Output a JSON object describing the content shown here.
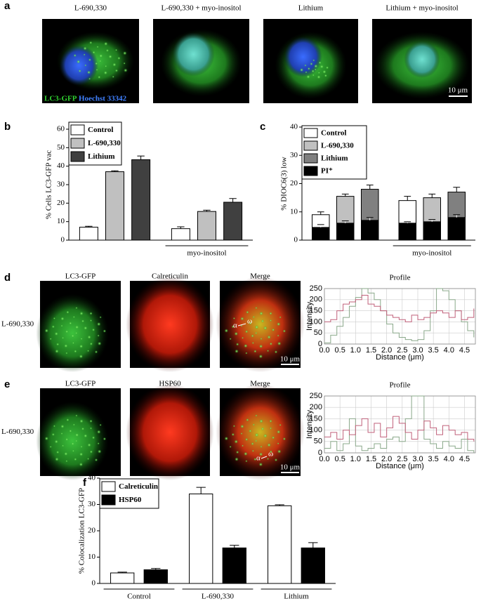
{
  "figure": {
    "panel_labels": [
      "a",
      "b",
      "c",
      "d",
      "e",
      "f"
    ],
    "a": {
      "titles": [
        "L-690,330",
        "L-690,330 + myo-inositol",
        "Lithium",
        "Lithium + myo-inositol"
      ],
      "stain_labels": [
        "LC3-GFP",
        "Hoechst 33342"
      ],
      "scale_bar": "10 μm"
    },
    "d": {
      "row_label": "L-690,330",
      "titles": [
        "LC3-GFP",
        "Calreticulin",
        "Merge"
      ],
      "scale_bar": "10 μm",
      "markers": [
        "α",
        "ω"
      ]
    },
    "e": {
      "row_label": "L-690,330",
      "titles": [
        "LC3-GFP",
        "HSP60",
        "Merge"
      ],
      "scale_bar": "10 μm",
      "markers": [
        "α",
        "ω"
      ]
    }
  },
  "chart_data": [
    {
      "type": "bar",
      "ylabel": "% Cells LC3-GFP vac",
      "categories": [
        null,
        "myo-inositol"
      ],
      "ylim": [
        0,
        60
      ],
      "yticks": [
        0,
        10,
        20,
        30,
        40,
        50,
        60
      ],
      "legend": "upper left",
      "series": [
        {
          "name": "Control",
          "color": "#ffffff",
          "values": [
            7,
            6.2
          ],
          "errors": [
            0.5,
            1
          ]
        },
        {
          "name": "L-690,330",
          "color": "#c0c0c0",
          "values": [
            37,
            15.5
          ],
          "errors": [
            0.5,
            0.7
          ]
        },
        {
          "name": "Lithium",
          "color": "#404040",
          "values": [
            43.5,
            20.5
          ],
          "errors": [
            2,
            2
          ]
        }
      ]
    },
    {
      "type": "bar",
      "ylabel": "% DIOC6(3) low",
      "categories": [
        null,
        "myo-inositol"
      ],
      "ylim": [
        0,
        40
      ],
      "yticks": [
        0,
        10,
        20,
        30,
        40
      ],
      "legend": "upper left",
      "stack_name": "PI⁺",
      "stack_color": "#000000",
      "series": [
        {
          "name": "Control",
          "color": "#ffffff",
          "values": [
            4.5,
            8
          ],
          "errors": [
            1,
            1.5
          ],
          "pi_values": [
            4.5,
            6
          ],
          "pi_errors": [
            1,
            0.5
          ]
        },
        {
          "name": "L-690,330",
          "color": "#c0c0c0",
          "values": [
            9.5,
            8.5
          ],
          "errors": [
            0.8,
            1.3
          ],
          "pi_values": [
            6,
            6.5
          ],
          "pi_errors": [
            0.8,
            0.8
          ]
        },
        {
          "name": "Lithium",
          "color": "#808080",
          "values": [
            11,
            9
          ],
          "errors": [
            1.5,
            1.7
          ],
          "pi_values": [
            7,
            8
          ],
          "pi_errors": [
            1,
            1
          ]
        }
      ]
    },
    {
      "type": "bar",
      "ylabel": "% Colocalization LC3-GFP",
      "categories": [
        "Control",
        "L-690,330",
        "Lithium"
      ],
      "ylim": [
        0,
        40
      ],
      "yticks": [
        0,
        10,
        20,
        30,
        40
      ],
      "legend": "upper left",
      "series": [
        {
          "name": "Calreticulin",
          "color": "#ffffff",
          "values": [
            4,
            34,
            29.5
          ],
          "errors": [
            0.3,
            2.5,
            0.4
          ]
        },
        {
          "name": "HSP60",
          "color": "#000000",
          "values": [
            5.2,
            13.5,
            13.5
          ],
          "errors": [
            0.5,
            1,
            2
          ]
        }
      ]
    },
    {
      "type": "line",
      "title": "Profile",
      "xlabel": "Distance (μm)",
      "ylabel": "Intensity",
      "grid": true,
      "xlim": [
        0,
        4.85
      ],
      "ylim": [
        0,
        250
      ],
      "xticks": [
        {
          "value": 0,
          "label": "0.0"
        },
        0.5,
        {
          "value": 1,
          "label": "1.0"
        },
        1.5,
        {
          "value": 2,
          "label": "2.0"
        },
        2.5,
        {
          "value": 3,
          "label": "3.0"
        },
        3.5,
        {
          "value": 4,
          "label": "4.0"
        },
        4.5
      ],
      "yticks": [
        0,
        50,
        100,
        150,
        200,
        250
      ],
      "x": [
        0,
        0.2,
        0.4,
        0.6,
        0.8,
        1,
        1.2,
        1.4,
        1.6,
        1.8,
        2,
        2.2,
        2.4,
        2.6,
        2.8,
        3,
        3.2,
        3.4,
        3.6,
        3.8,
        4,
        4.2,
        4.4,
        4.6,
        4.8
      ],
      "series": [
        {
          "color": "#8aa88a",
          "values": [
            5,
            40,
            80,
            120,
            170,
            210,
            250,
            230,
            200,
            150,
            90,
            50,
            30,
            20,
            15,
            20,
            60,
            150,
            250,
            240,
            200,
            150,
            100,
            60,
            30
          ]
        },
        {
          "color": "#c0607a",
          "values": [
            100,
            110,
            150,
            180,
            190,
            200,
            220,
            180,
            170,
            150,
            130,
            120,
            110,
            100,
            130,
            110,
            120,
            140,
            150,
            140,
            120,
            150,
            110,
            120,
            160
          ]
        }
      ]
    },
    {
      "type": "line",
      "title": "Profile",
      "xlabel": "Distance (μm)",
      "ylabel": "Intensity",
      "grid": true,
      "xlim": [
        0,
        4.85
      ],
      "ylim": [
        0,
        250
      ],
      "xticks": [
        {
          "value": 0,
          "label": "0.0"
        },
        0.5,
        {
          "value": 1,
          "label": "1.0"
        },
        1.5,
        {
          "value": 2,
          "label": "2.0"
        },
        2.5,
        {
          "value": 3,
          "label": "3.0"
        },
        3.5,
        {
          "value": 4,
          "label": "4.0"
        },
        4.5
      ],
      "yticks": [
        0,
        50,
        100,
        150,
        200,
        250
      ],
      "x": [
        0,
        0.2,
        0.4,
        0.6,
        0.8,
        1,
        1.2,
        1.4,
        1.6,
        1.8,
        2,
        2.2,
        2.4,
        2.6,
        2.8,
        3,
        3.2,
        3.4,
        3.6,
        3.8,
        4,
        4.2,
        4.4,
        4.6,
        4.8
      ],
      "series": [
        {
          "color": "#8aa88a",
          "values": [
            20,
            50,
            10,
            40,
            150,
            30,
            10,
            20,
            40,
            20,
            60,
            70,
            50,
            150,
            250,
            250,
            60,
            40,
            20,
            50,
            30,
            20,
            60,
            10,
            0
          ]
        },
        {
          "color": "#c0607a",
          "values": [
            70,
            90,
            60,
            100,
            80,
            120,
            150,
            90,
            130,
            70,
            110,
            160,
            130,
            90,
            60,
            100,
            140,
            110,
            80,
            120,
            100,
            80,
            90,
            60,
            50
          ]
        }
      ]
    }
  ]
}
